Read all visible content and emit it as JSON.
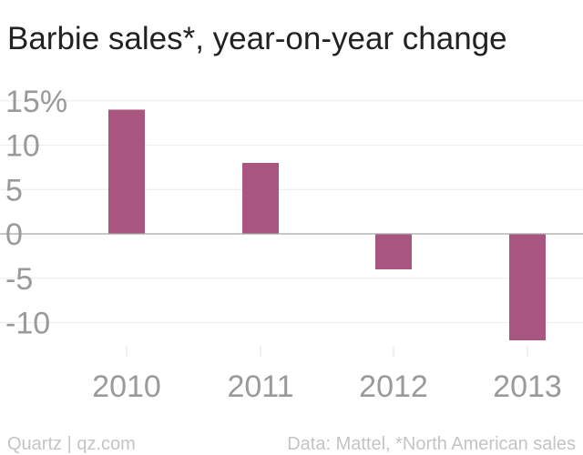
{
  "chart_data": {
    "type": "bar",
    "title": "Barbie sales*, year-on-year change",
    "categories": [
      "2010",
      "2011",
      "2012",
      "2013"
    ],
    "values": [
      14,
      8,
      -4,
      -12
    ],
    "ylim": [
      -12,
      16
    ],
    "yticks": [
      15,
      10,
      5,
      0,
      -5,
      -10
    ],
    "ytick_labels": [
      "15%",
      "10",
      "5",
      "0",
      "-5",
      "-10"
    ],
    "xlabel": "",
    "ylabel": "",
    "grid": true,
    "bar_color": "#a8557f"
  },
  "footer": {
    "source_left": "Quartz | qz.com",
    "source_right": "Data: Mattel, *North American sales"
  }
}
